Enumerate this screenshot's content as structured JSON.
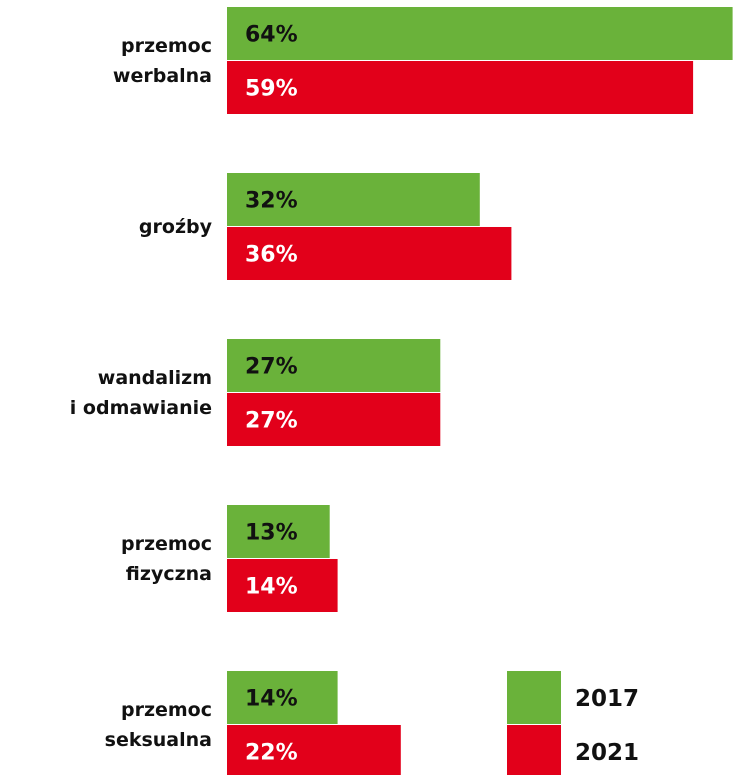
{
  "chart_data": {
    "type": "bar",
    "orientation": "horizontal",
    "categories": [
      "przemoc\nwerbalna",
      "groźby",
      "wandalizm\ni odmawianie",
      "przemoc\nfizyczna",
      "przemoc\nseksualna"
    ],
    "series": [
      {
        "name": "2017",
        "color": "#6ab23a",
        "values": [
          64,
          32,
          27,
          13,
          14
        ],
        "value_labels": [
          "64%",
          "32%",
          "27%",
          "13%",
          "14%"
        ]
      },
      {
        "name": "2021",
        "color": "#e2001a",
        "values": [
          59,
          36,
          27,
          14,
          22
        ],
        "value_labels": [
          "59%",
          "36%",
          "27%",
          "14%",
          "22%"
        ]
      }
    ],
    "legend": "bottom-right"
  }
}
